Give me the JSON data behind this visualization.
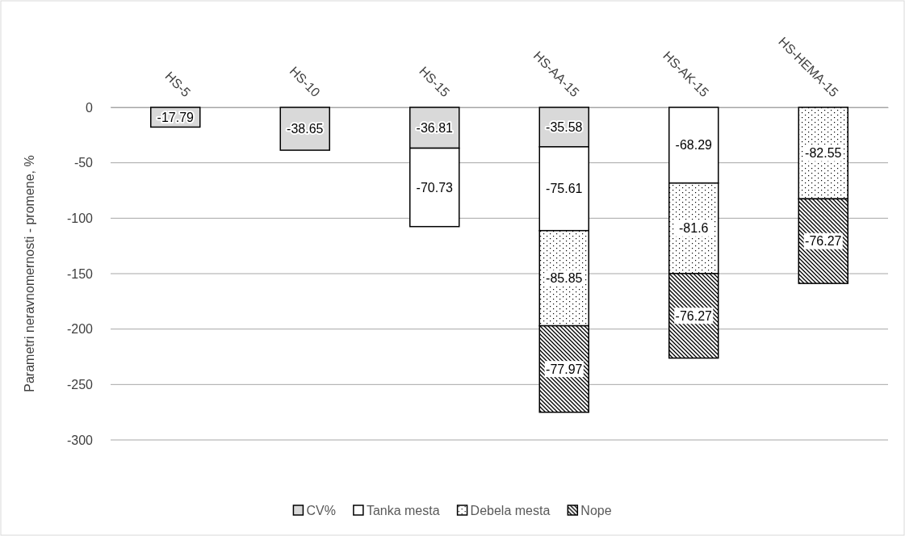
{
  "chart_data": {
    "type": "bar",
    "stacked": true,
    "ylabel": "Parametri neravnomernosti - promene, %",
    "categories": [
      "HS-5",
      "HS-10",
      "HS-15",
      "HS-AA-15",
      "HS-AK-15",
      "HS-HEMA-15"
    ],
    "series": [
      {
        "name": "CV%",
        "color": "#d9d9d9",
        "values": [
          -17.79,
          -38.65,
          -36.81,
          -35.58,
          null,
          null
        ]
      },
      {
        "name": "Tanka mesta",
        "color": "#ffffff",
        "values": [
          null,
          null,
          -70.73,
          -75.61,
          -68.29,
          null
        ]
      },
      {
        "name": "Debela mesta",
        "color": "#000000",
        "values": [
          null,
          null,
          null,
          -85.85,
          -81.6,
          -82.55
        ]
      },
      {
        "name": "Nope",
        "color": "#000000",
        "values": [
          null,
          null,
          null,
          -77.97,
          -76.27,
          -76.27
        ]
      }
    ],
    "ylim": [
      -300,
      0
    ],
    "yticks": [
      -300,
      -250,
      -200,
      -150,
      -100,
      -50,
      0
    ],
    "grid": "y",
    "legend": "bottom",
    "data_labels": true
  }
}
